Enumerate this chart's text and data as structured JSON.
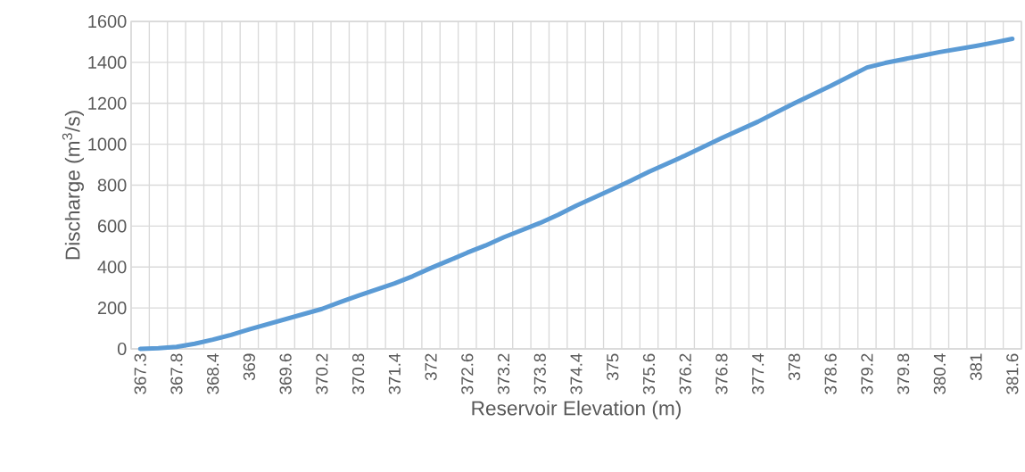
{
  "chart_data": {
    "type": "line",
    "xlabel": "Reservoir Elevation (m)",
    "ylabel": "Discharge (m$^{3}$/s)",
    "categories": [
      "367.3",
      null,
      "367.8",
      null,
      "368.4",
      null,
      "369",
      null,
      "369.6",
      null,
      "370.2",
      null,
      "370.8",
      null,
      "371.4",
      null,
      "372",
      null,
      "372.6",
      null,
      "373.2",
      null,
      "373.8",
      null,
      "374.4",
      null,
      "375",
      null,
      "375.6",
      null,
      "376.2",
      null,
      "376.8",
      null,
      "377.4",
      null,
      "378",
      null,
      "378.6",
      null,
      "379.2",
      null,
      "379.8",
      null,
      "380.4",
      null,
      "381",
      null,
      "381.6"
    ],
    "series": [
      {
        "color": "#5b9bd5",
        "values": [
          0,
          3,
          10,
          25,
          45,
          68,
          95,
          120,
          145,
          170,
          195,
          228,
          260,
          290,
          320,
          355,
          395,
          432,
          470,
          505,
          545,
          580,
          615,
          655,
          700,
          740,
          780,
          822,
          865,
          905,
          945,
          988,
          1030,
          1070,
          1110,
          1155,
          1200,
          1243,
          1285,
          1330,
          1375,
          1397,
          1415,
          1432,
          1450,
          1465,
          1480,
          1497,
          1515
        ]
      }
    ],
    "ylim": [
      0,
      1600
    ],
    "yticks": [
      0,
      200,
      400,
      600,
      800,
      1000,
      1200,
      1400,
      1600
    ],
    "grid": true
  }
}
